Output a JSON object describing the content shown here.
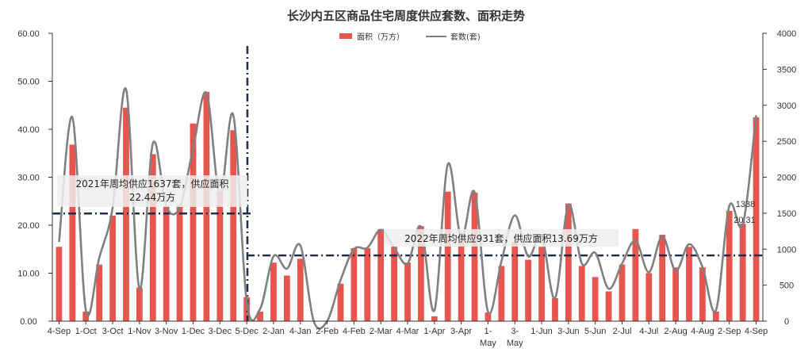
{
  "chart_data": {
    "type": "bar",
    "title": "长沙内五区商品住宅周度供应套数、面积走势",
    "legend": {
      "placement": "top-center",
      "bar_label": "面积（万方）",
      "line_label": "套数(套)"
    },
    "y_left": {
      "range": [
        0,
        60
      ],
      "ticks": [
        "0.00",
        "10.00",
        "20.00",
        "30.00",
        "40.00",
        "50.00",
        "60.00"
      ]
    },
    "y_right": {
      "range": [
        0,
        4000
      ],
      "ticks": [
        "0",
        "500",
        "1000",
        "1500",
        "2000",
        "2500",
        "3000",
        "3500",
        "4000"
      ]
    },
    "x_tick_labels": [
      "4-Sep",
      "1-Oct",
      "3-Oct",
      "1-Nov",
      "3-Nov",
      "1-Dec",
      "3-Dec",
      "5-Dec",
      "2-Jan",
      "4-Jan",
      "2-Feb",
      "4-Feb",
      "2-Mar",
      "4-Mar",
      "1-Apr",
      "3-Apr",
      "1-\nMay",
      "3-\nMay",
      "1-Jun",
      "3-Jun",
      "5-Jun",
      "2-Jul",
      "4-Jul",
      "2-Aug",
      "4-Aug",
      "2-Sep",
      "4-Sep"
    ],
    "x_tick_positions": [
      0,
      2,
      4,
      6,
      8,
      10,
      12,
      14,
      16,
      18,
      20,
      22,
      24,
      26,
      28,
      30,
      32,
      34,
      36,
      38,
      40,
      42,
      44,
      46,
      48,
      50,
      52
    ],
    "series": [
      {
        "name": "面积（万方）",
        "type": "bar",
        "color": "#e8544e",
        "values": [
          15.5,
          36.8,
          2.0,
          11.8,
          22.0,
          44.5,
          7.0,
          34.8,
          24.0,
          24.2,
          41.2,
          47.8,
          27.0,
          39.8,
          5.0,
          2.0,
          12.2,
          9.5,
          13.0,
          0.0,
          0.0,
          7.8,
          15.2,
          15.2,
          19.2,
          15.5,
          12.2,
          19.8,
          1.0,
          27.0,
          17.0,
          26.8,
          1.8,
          11.5,
          16.5,
          12.8,
          15.5,
          4.8,
          24.5,
          11.5,
          9.2,
          6.2,
          11.8,
          19.2,
          10.0,
          18.0,
          11.2,
          15.5,
          11.2,
          2.0,
          23.0,
          20.31,
          42.5
        ]
      },
      {
        "name": "套数(套)",
        "type": "line",
        "color": "#808080",
        "values": [
          1100,
          2830,
          150,
          880,
          1580,
          3220,
          450,
          2470,
          1600,
          1580,
          2400,
          3170,
          1750,
          2860,
          270,
          170,
          900,
          730,
          1050,
          0,
          0,
          570,
          1000,
          1020,
          1270,
          1020,
          800,
          1310,
          150,
          2180,
          1150,
          1790,
          130,
          830,
          1470,
          900,
          1180,
          320,
          1620,
          800,
          950,
          450,
          800,
          1120,
          680,
          1180,
          700,
          1070,
          750,
          150,
          1600,
          1338,
          2860
        ]
      }
    ],
    "reference_lines": [
      {
        "label": "2021年周均供应1637套，供应面积22.44万方",
        "value_left": 22.44,
        "from": 0,
        "to": 14
      },
      {
        "label": "2022年周均供应931套，供应面积13.69万方",
        "value_left": 13.69,
        "from": 14.5,
        "to": 52
      }
    ],
    "annotations": {
      "data_label_count": "1338",
      "data_label_area": "20.31",
      "note_2021_line1": "2021年周均供应1637套，供应面积",
      "note_2021_line2": "22.44万方",
      "note_2022": "2022年周均供应931套，供应面积13.69万方"
    },
    "divider_after_index": 14,
    "grid": false
  }
}
